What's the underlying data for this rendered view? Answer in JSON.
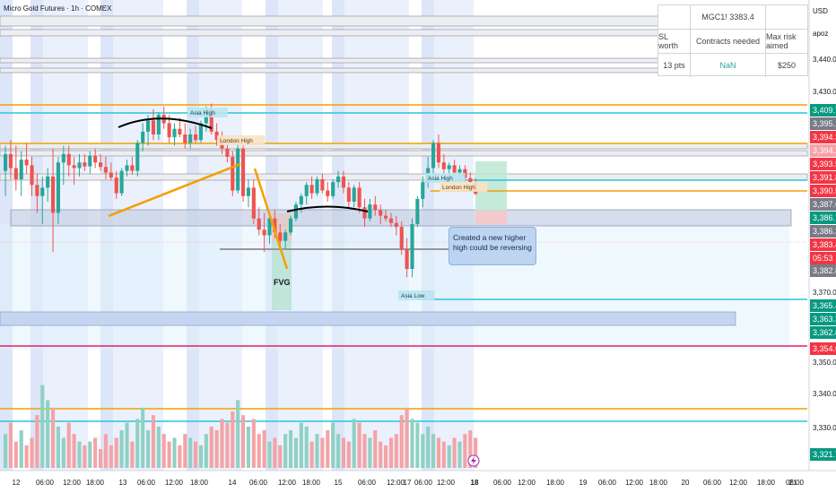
{
  "header": {
    "title": "Micro Gold Futures · 1h · COMEX",
    "currency": "USD",
    "account": "apoz"
  },
  "info_table": {
    "symbol_price": "MGC1! 3383.4",
    "headers": [
      "SL worth",
      "Contracts needed",
      "Max risk aimed"
    ],
    "values": [
      "13 pts",
      "NaN",
      "$250"
    ],
    "nan_color": "#26a69a"
  },
  "annotations": {
    "asia_high_1": "Asia High",
    "london_high_1": "London High",
    "asia_high_2": "Asia High",
    "london_high_2": "London High",
    "asia_low": "Asia Low",
    "fvg": "FVG",
    "note": "Created a new higher high could be reversing"
  },
  "chart_data": {
    "type": "candlestick",
    "title": "Micro Gold Futures · 1h · COMEX",
    "price_axis": {
      "ticks": [
        3440.0,
        3430.0,
        3370.0,
        3350.0,
        3340.0,
        3330.0
      ],
      "tick_labels": [
        "3,440.0",
        "3,430.0",
        "3,370.0",
        "3,350.0",
        "3,340.0",
        "3,330.0"
      ],
      "visible_range": [
        3318,
        3448
      ]
    },
    "time_axis": {
      "labels": [
        "12",
        "06:00",
        "12:00",
        "18:00",
        "13",
        "06:00",
        "12:00",
        "18:00",
        "14",
        "06:00",
        "12:00",
        "18:00",
        "15",
        "06:00",
        "12:00",
        "17",
        "06:00",
        "12:00",
        "18",
        "06:00",
        "12:00",
        "18:00",
        "19",
        "06:00",
        "12:00",
        "18:00",
        "20",
        "06:00",
        "12:00",
        "18:00",
        "21",
        "06:00"
      ],
      "bold": [
        "18"
      ]
    },
    "price_tags": [
      {
        "label": "3,409.7",
        "value": 3409.7,
        "color": "#089981"
      },
      {
        "label": "3,395.1",
        "value": 3395.1,
        "color": "#787b86"
      },
      {
        "label": "3,394.3",
        "value": 3394.3,
        "color": "#f23645"
      },
      {
        "label": "3,394.2",
        "value": 3394.2,
        "color": "#f7a1a7"
      },
      {
        "label": "3,393.5",
        "value": 3393.5,
        "color": "#f23645"
      },
      {
        "label": "3,391.8",
        "value": 3391.8,
        "color": "#f23645"
      },
      {
        "label": "3,390.5",
        "value": 3390.5,
        "color": "#f23645"
      },
      {
        "label": "3,387.6",
        "value": 3387.6,
        "color": "#787b86"
      },
      {
        "label": "3,386.7",
        "value": 3386.7,
        "color": "#089981"
      },
      {
        "label": "3,386.3",
        "value": 3386.3,
        "color": "#787b86"
      },
      {
        "label": "3,383.4",
        "value": 3383.4,
        "color": "#f23645"
      },
      {
        "label": "05:53",
        "value": 3381.2,
        "color": "#f23645"
      },
      {
        "label": "3,382.8",
        "value": 3377.8,
        "color": "#787b86"
      },
      {
        "label": "3,365.4",
        "value": 3365.4,
        "color": "#089981"
      },
      {
        "label": "3,363.3",
        "value": 3363.3,
        "color": "#089981"
      },
      {
        "label": "3,362.8",
        "value": 3362.8,
        "color": "#089981"
      },
      {
        "label": "3,354.6",
        "value": 3354.6,
        "color": "#f23645"
      },
      {
        "label": "3,321.7",
        "value": 3321.7,
        "color": "#089981"
      }
    ],
    "horizontal_levels": [
      {
        "value": 3409.7,
        "color": "#26c6da"
      },
      {
        "value": 3411.2,
        "color": "#f59f00"
      },
      {
        "value": 3395.1,
        "color": "#f59f00"
      },
      {
        "value": 3391.8,
        "color": "#26c6da"
      },
      {
        "value": 3390.5,
        "color": "#f59f00"
      },
      {
        "value": 3366.5,
        "color": "#26c6da"
      },
      {
        "value": 3354.6,
        "color": "#e91e63"
      },
      {
        "value": 3334.5,
        "color": "#f59f00"
      },
      {
        "value": 3332.0,
        "color": "#26c6da"
      }
    ],
    "candles": [
      {
        "o": 3387.5,
        "h": 3392,
        "l": 3383,
        "c": 3390.5
      },
      {
        "o": 3390.5,
        "h": 3393,
        "l": 3386,
        "c": 3388
      },
      {
        "o": 3388,
        "h": 3392,
        "l": 3384,
        "c": 3386
      },
      {
        "o": 3386,
        "h": 3391,
        "l": 3383,
        "c": 3389.5
      },
      {
        "o": 3389.5,
        "h": 3392.5,
        "l": 3387,
        "c": 3388.5
      },
      {
        "o": 3388.5,
        "h": 3390,
        "l": 3383,
        "c": 3385
      },
      {
        "o": 3385,
        "h": 3387,
        "l": 3380,
        "c": 3383
      },
      {
        "o": 3383,
        "h": 3386.5,
        "l": 3378,
        "c": 3384.5
      },
      {
        "o": 3384.5,
        "h": 3388,
        "l": 3382,
        "c": 3386.5
      },
      {
        "o": 3386.5,
        "h": 3391.5,
        "l": 3373,
        "c": 3380
      },
      {
        "o": 3380,
        "h": 3390,
        "l": 3378,
        "c": 3389
      },
      {
        "o": 3389,
        "h": 3392,
        "l": 3385,
        "c": 3390.5
      },
      {
        "o": 3390.5,
        "h": 3392,
        "l": 3386.5,
        "c": 3388.5
      },
      {
        "o": 3388.5,
        "h": 3390,
        "l": 3385,
        "c": 3388
      },
      {
        "o": 3388,
        "h": 3390.5,
        "l": 3386.5,
        "c": 3389
      },
      {
        "o": 3389,
        "h": 3390.5,
        "l": 3387.5,
        "c": 3388.3
      },
      {
        "o": 3388.3,
        "h": 3391,
        "l": 3387,
        "c": 3390.2
      },
      {
        "o": 3390.2,
        "h": 3391.5,
        "l": 3388,
        "c": 3389
      },
      {
        "o": 3389,
        "h": 3390.5,
        "l": 3387.5,
        "c": 3388.2
      },
      {
        "o": 3388.2,
        "h": 3390,
        "l": 3386,
        "c": 3387.2
      },
      {
        "o": 3387.2,
        "h": 3389,
        "l": 3385.8,
        "c": 3386.3
      },
      {
        "o": 3386.3,
        "h": 3387.5,
        "l": 3382.5,
        "c": 3383.5
      },
      {
        "o": 3383.5,
        "h": 3388,
        "l": 3383,
        "c": 3387.5
      },
      {
        "o": 3387.5,
        "h": 3389.5,
        "l": 3386.5,
        "c": 3388.5
      },
      {
        "o": 3388.5,
        "h": 3390,
        "l": 3386.8,
        "c": 3387.5
      },
      {
        "o": 3387.5,
        "h": 3393,
        "l": 3386.5,
        "c": 3392.5
      },
      {
        "o": 3392.5,
        "h": 3396,
        "l": 3391,
        "c": 3394.5
      },
      {
        "o": 3394.5,
        "h": 3397.5,
        "l": 3392,
        "c": 3396.5
      },
      {
        "o": 3396.5,
        "h": 3398.5,
        "l": 3393,
        "c": 3394
      },
      {
        "o": 3394,
        "h": 3398,
        "l": 3393,
        "c": 3397.5
      },
      {
        "o": 3397.5,
        "h": 3399,
        "l": 3395,
        "c": 3396
      },
      {
        "o": 3396,
        "h": 3397.5,
        "l": 3392.5,
        "c": 3393.5
      },
      {
        "o": 3393.5,
        "h": 3396,
        "l": 3392,
        "c": 3395
      },
      {
        "o": 3395,
        "h": 3397,
        "l": 3393.5,
        "c": 3394
      },
      {
        "o": 3394,
        "h": 3396,
        "l": 3391.5,
        "c": 3392.5
      },
      {
        "o": 3392.5,
        "h": 3395,
        "l": 3391.5,
        "c": 3394
      },
      {
        "o": 3394,
        "h": 3395.5,
        "l": 3392.5,
        "c": 3393
      },
      {
        "o": 3393,
        "h": 3396.5,
        "l": 3392.5,
        "c": 3396
      },
      {
        "o": 3396,
        "h": 3399,
        "l": 3394.5,
        "c": 3398.5
      },
      {
        "o": 3398.5,
        "h": 3399.5,
        "l": 3394,
        "c": 3394.5
      },
      {
        "o": 3394.5,
        "h": 3396,
        "l": 3392,
        "c": 3393
      },
      {
        "o": 3393,
        "h": 3394.5,
        "l": 3390.5,
        "c": 3391.5
      },
      {
        "o": 3391.5,
        "h": 3393,
        "l": 3389,
        "c": 3390
      },
      {
        "o": 3390,
        "h": 3391,
        "l": 3383,
        "c": 3384
      },
      {
        "o": 3384,
        "h": 3393,
        "l": 3383.5,
        "c": 3391.5
      },
      {
        "o": 3391.5,
        "h": 3392,
        "l": 3382,
        "c": 3383
      },
      {
        "o": 3383,
        "h": 3386,
        "l": 3381,
        "c": 3384.5
      },
      {
        "o": 3384.5,
        "h": 3386,
        "l": 3378,
        "c": 3379
      },
      {
        "o": 3379,
        "h": 3381,
        "l": 3376,
        "c": 3377
      },
      {
        "o": 3377,
        "h": 3380,
        "l": 3373,
        "c": 3376
      },
      {
        "o": 3376,
        "h": 3379.5,
        "l": 3374.5,
        "c": 3379
      },
      {
        "o": 3379,
        "h": 3380.5,
        "l": 3375.5,
        "c": 3376.5
      },
      {
        "o": 3376.5,
        "h": 3378,
        "l": 3374,
        "c": 3375
      },
      {
        "o": 3375,
        "h": 3377,
        "l": 3373.5,
        "c": 3376.5
      },
      {
        "o": 3376.5,
        "h": 3379.5,
        "l": 3376,
        "c": 3379
      },
      {
        "o": 3379,
        "h": 3382,
        "l": 3378.5,
        "c": 3381.5
      },
      {
        "o": 3381.5,
        "h": 3383.5,
        "l": 3380,
        "c": 3383
      },
      {
        "o": 3383,
        "h": 3385.5,
        "l": 3381.5,
        "c": 3385
      },
      {
        "o": 3385,
        "h": 3386.5,
        "l": 3382.5,
        "c": 3383.5
      },
      {
        "o": 3383.5,
        "h": 3386.5,
        "l": 3383,
        "c": 3386
      },
      {
        "o": 3386,
        "h": 3387,
        "l": 3383.5,
        "c": 3384
      },
      {
        "o": 3384,
        "h": 3385.5,
        "l": 3382,
        "c": 3383
      },
      {
        "o": 3383,
        "h": 3386,
        "l": 3382.5,
        "c": 3385.5
      },
      {
        "o": 3385.5,
        "h": 3387.5,
        "l": 3384.5,
        "c": 3386.5
      },
      {
        "o": 3386.5,
        "h": 3387.5,
        "l": 3383.5,
        "c": 3384.5
      },
      {
        "o": 3384.5,
        "h": 3385.5,
        "l": 3381,
        "c": 3382
      },
      {
        "o": 3382,
        "h": 3385,
        "l": 3381,
        "c": 3384.5
      },
      {
        "o": 3384.5,
        "h": 3385.5,
        "l": 3380,
        "c": 3381
      },
      {
        "o": 3381,
        "h": 3382.5,
        "l": 3377.5,
        "c": 3379
      },
      {
        "o": 3379,
        "h": 3382.5,
        "l": 3378.5,
        "c": 3381.5
      },
      {
        "o": 3381.5,
        "h": 3383,
        "l": 3379.5,
        "c": 3380.5
      },
      {
        "o": 3380.5,
        "h": 3381.5,
        "l": 3378,
        "c": 3379.5
      },
      {
        "o": 3379.5,
        "h": 3380.5,
        "l": 3378.5,
        "c": 3379
      },
      {
        "o": 3379,
        "h": 3380,
        "l": 3377.5,
        "c": 3378.2
      },
      {
        "o": 3378.2,
        "h": 3379.5,
        "l": 3376,
        "c": 3377.5
      },
      {
        "o": 3377.5,
        "h": 3378.5,
        "l": 3372.5,
        "c": 3373.5
      },
      {
        "o": 3373.5,
        "h": 3375.5,
        "l": 3368.5,
        "c": 3370
      },
      {
        "o": 3370,
        "h": 3379,
        "l": 3368.5,
        "c": 3378
      },
      {
        "o": 3378,
        "h": 3383,
        "l": 3377.5,
        "c": 3382.5
      },
      {
        "o": 3382.5,
        "h": 3386.5,
        "l": 3381,
        "c": 3385.5
      },
      {
        "o": 3385.5,
        "h": 3390,
        "l": 3384.5,
        "c": 3388
      },
      {
        "o": 3388,
        "h": 3393,
        "l": 3386.5,
        "c": 3392.5
      },
      {
        "o": 3392.5,
        "h": 3394,
        "l": 3388,
        "c": 3389
      },
      {
        "o": 3389,
        "h": 3390.5,
        "l": 3386.5,
        "c": 3387.8
      },
      {
        "o": 3387.8,
        "h": 3389,
        "l": 3386.5,
        "c": 3388.5
      },
      {
        "o": 3388.5,
        "h": 3389.5,
        "l": 3386.5,
        "c": 3387.2
      },
      {
        "o": 3387.2,
        "h": 3388.5,
        "l": 3385.8,
        "c": 3387.8
      },
      {
        "o": 3387.8,
        "h": 3388.5,
        "l": 3385.5,
        "c": 3386.2
      },
      {
        "o": 3386.2,
        "h": 3387.2,
        "l": 3384.8,
        "c": 3385.5
      },
      {
        "o": 3385.5,
        "h": 3386.2,
        "l": 3383.2,
        "c": 3383.4
      }
    ],
    "volume": [
      9,
      12,
      7,
      10,
      6,
      8,
      14,
      22,
      18,
      16,
      11,
      8,
      12,
      9,
      7,
      6,
      7,
      8,
      5,
      9,
      6,
      8,
      10,
      12,
      7,
      13,
      16,
      10,
      14,
      11,
      9,
      7,
      8,
      6,
      9,
      8,
      7,
      6,
      9,
      11,
      10,
      13,
      12,
      15,
      18,
      14,
      11,
      13,
      9,
      10,
      7,
      8,
      6,
      9,
      10,
      8,
      12,
      11,
      7,
      9,
      8,
      10,
      12,
      9,
      8,
      7,
      13,
      12,
      9,
      8,
      10,
      7,
      6,
      8,
      9,
      14,
      16,
      13,
      12,
      9,
      11,
      9,
      8,
      7,
      6,
      8,
      7,
      9,
      10,
      8
    ]
  }
}
